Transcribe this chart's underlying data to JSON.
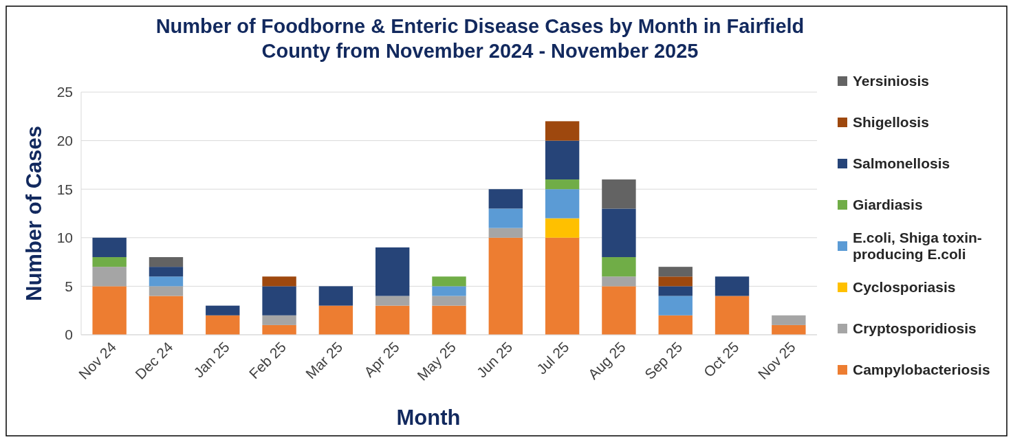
{
  "chart_data": {
    "type": "bar",
    "stacked": true,
    "title": "Number of Foodborne & Enteric Disease Cases by Month in Fairfield County from November 2024 - November 2025",
    "xlabel": "Month",
    "ylabel": "Number of Cases",
    "categories": [
      "Nov 24",
      "Dec 24",
      "Jan 25",
      "Feb 25",
      "Mar 25",
      "Apr 25",
      "May 25",
      "Jun 25",
      "Jul 25",
      "Aug 25",
      "Sep 25",
      "Oct 25",
      "Nov 25"
    ],
    "series": [
      {
        "name": "Campylobacteriosis",
        "color": "#ed7d31",
        "values": [
          5,
          4,
          2,
          1,
          3,
          3,
          3,
          10,
          10,
          5,
          2,
          4,
          1
        ]
      },
      {
        "name": "Cryptosporidiosis",
        "color": "#a5a5a5",
        "values": [
          2,
          1,
          0,
          1,
          0,
          1,
          1,
          1,
          0,
          1,
          0,
          0,
          1
        ]
      },
      {
        "name": "Cyclosporiasis",
        "color": "#ffc000",
        "values": [
          0,
          0,
          0,
          0,
          0,
          0,
          0,
          0,
          2,
          0,
          0,
          0,
          0
        ]
      },
      {
        "name": "E.coli, Shiga toxin-producing E.coli",
        "color": "#5b9bd5",
        "values": [
          0,
          1,
          0,
          0,
          0,
          0,
          1,
          2,
          3,
          0,
          2,
          0,
          0
        ]
      },
      {
        "name": "Giardiasis",
        "color": "#70ad47",
        "values": [
          1,
          0,
          0,
          0,
          0,
          0,
          1,
          0,
          1,
          2,
          0,
          0,
          0
        ]
      },
      {
        "name": "Salmonellosis",
        "color": "#264478",
        "values": [
          2,
          1,
          1,
          3,
          2,
          5,
          0,
          2,
          4,
          5,
          1,
          2,
          0
        ]
      },
      {
        "name": "Shigellosis",
        "color": "#9e480e",
        "values": [
          0,
          0,
          0,
          1,
          0,
          0,
          0,
          0,
          2,
          0,
          1,
          0,
          0
        ]
      },
      {
        "name": "Yersiniosis",
        "color": "#636363",
        "values": [
          0,
          1,
          0,
          0,
          0,
          0,
          0,
          0,
          0,
          3,
          1,
          0,
          0
        ]
      }
    ],
    "ylim": [
      0,
      25
    ],
    "yticks": [
      0,
      5,
      10,
      15,
      20,
      25
    ],
    "grid": "y",
    "legend": "right"
  }
}
